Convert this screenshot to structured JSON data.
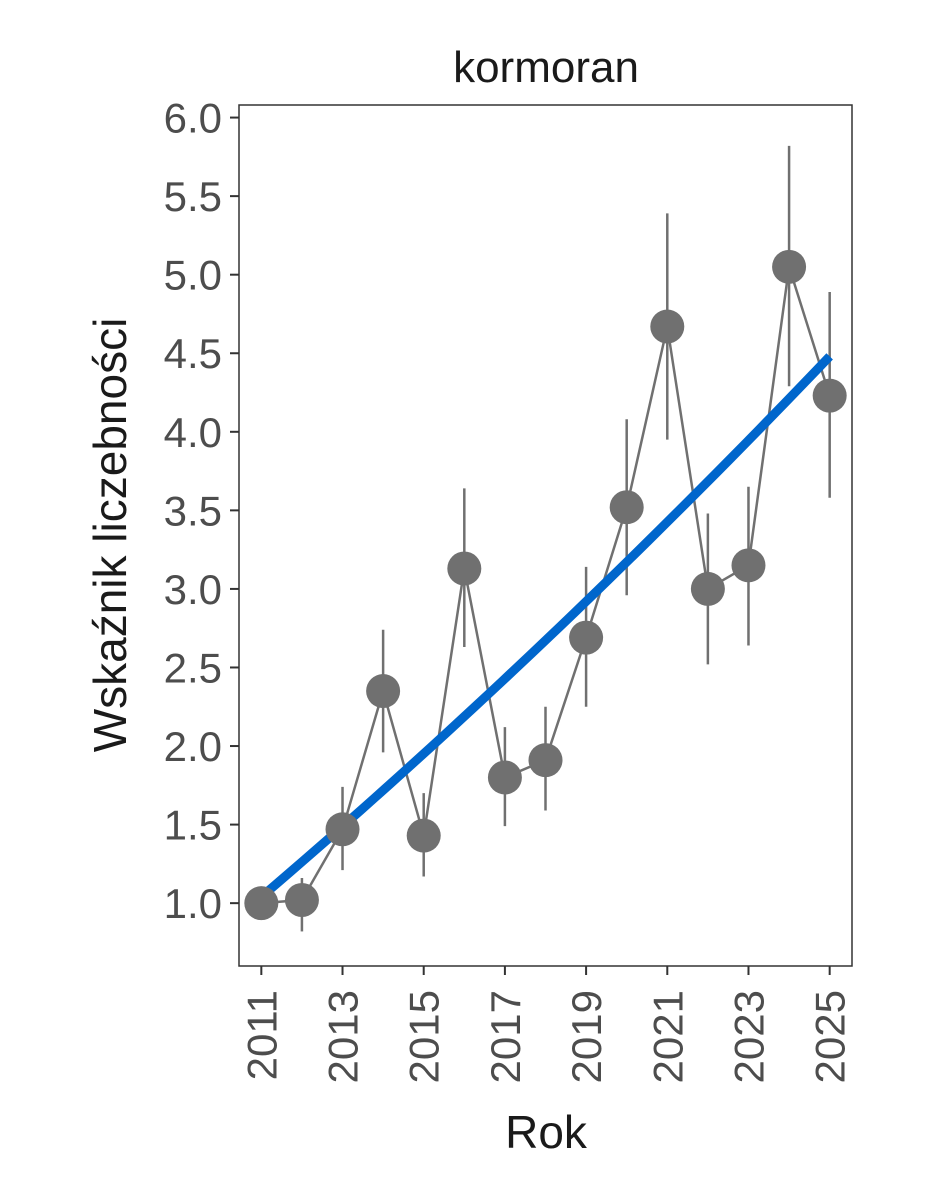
{
  "chart_data": {
    "type": "line",
    "title": "kormoran",
    "xlabel": "Rok",
    "ylabel": "Wskaźnik liczebności",
    "xlim": [
      2010.45,
      2025.55
    ],
    "ylim": [
      0.6,
      6.08
    ],
    "x_ticks": [
      2011,
      2013,
      2015,
      2017,
      2019,
      2021,
      2023,
      2025
    ],
    "x_tick_labels": [
      "2011",
      "2013",
      "2015",
      "2017",
      "2019",
      "2021",
      "2023",
      "2025"
    ],
    "y_ticks": [
      1.0,
      1.5,
      2.0,
      2.5,
      3.0,
      3.5,
      4.0,
      4.5,
      5.0,
      5.5,
      6.0
    ],
    "y_tick_labels": [
      "1.0",
      "1.5",
      "2.0",
      "2.5",
      "3.0",
      "3.5",
      "4.0",
      "4.5",
      "5.0",
      "5.5",
      "6.0"
    ],
    "grid": false,
    "series": [
      {
        "kind": "points-with-errorbars",
        "color": "#707070",
        "x": [
          2011,
          2012,
          2013,
          2014,
          2015,
          2016,
          2017,
          2018,
          2019,
          2020,
          2021,
          2022,
          2023,
          2024,
          2025
        ],
        "y": [
          1.0,
          1.02,
          1.47,
          2.35,
          1.43,
          3.13,
          1.8,
          1.91,
          2.69,
          3.52,
          4.67,
          3.0,
          3.15,
          5.05,
          4.23
        ],
        "lower": [
          1.0,
          0.82,
          1.21,
          1.96,
          1.17,
          2.63,
          1.49,
          1.59,
          2.25,
          2.96,
          3.95,
          2.52,
          2.64,
          4.29,
          3.58
        ],
        "upper": [
          1.0,
          1.16,
          1.74,
          2.74,
          1.7,
          3.64,
          2.12,
          2.25,
          3.14,
          4.08,
          5.39,
          3.48,
          3.65,
          5.82,
          4.89
        ]
      },
      {
        "kind": "trend",
        "color": "#0066cc",
        "x": [
          2011,
          2025
        ],
        "y": [
          1.04,
          4.48
        ],
        "curvature": 0.35
      }
    ]
  }
}
